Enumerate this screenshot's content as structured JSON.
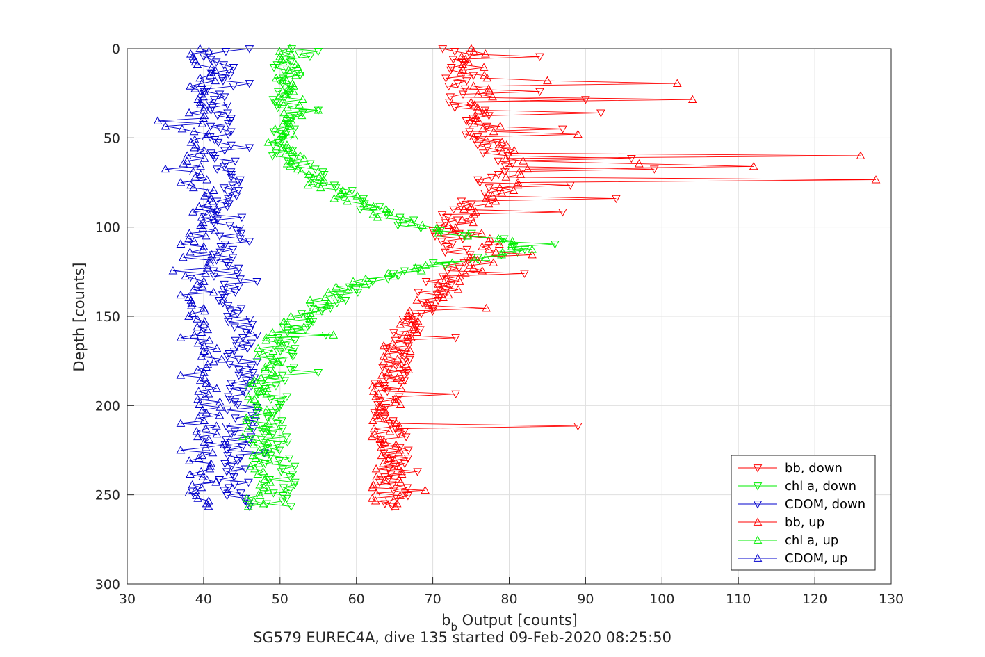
{
  "chart_data": {
    "type": "line",
    "xlabel_main": "b",
    "xlabel_sub": "b",
    "xlabel_rest": " Output [counts]",
    "ylabel": "Depth [counts]",
    "caption": "SG579 EUREC4A, dive 135 started 09-Feb-2020 08:25:50",
    "xlim": [
      30,
      130
    ],
    "ylim": [
      300,
      0
    ],
    "y_reversed": true,
    "grid": true,
    "legend_position": "bottom-right",
    "xticks": [
      "30",
      "40",
      "50",
      "60",
      "70",
      "80",
      "90",
      "100",
      "110",
      "120",
      "130"
    ],
    "yticks": [
      "0",
      "50",
      "100",
      "150",
      "200",
      "250",
      "300"
    ],
    "series": [
      {
        "name": "bb, down",
        "color": "#ff0000",
        "marker": "triangle-down",
        "profile": [
          [
            0,
            73
          ],
          [
            10,
            74
          ],
          [
            20,
            73
          ],
          [
            30,
            74
          ],
          [
            40,
            76
          ],
          [
            50,
            76
          ],
          [
            60,
            79
          ],
          [
            70,
            78
          ],
          [
            80,
            77
          ],
          [
            90,
            74
          ],
          [
            100,
            71
          ],
          [
            110,
            73
          ],
          [
            120,
            74
          ],
          [
            130,
            71
          ],
          [
            140,
            69
          ],
          [
            150,
            68
          ],
          [
            160,
            66
          ],
          [
            170,
            65
          ],
          [
            180,
            65
          ],
          [
            190,
            64
          ],
          [
            200,
            64
          ],
          [
            210,
            64
          ],
          [
            220,
            65
          ],
          [
            230,
            65
          ],
          [
            240,
            65
          ],
          [
            250,
            65
          ],
          [
            256,
            65
          ]
        ],
        "spikes": [
          [
            4,
            84
          ],
          [
            24,
            84
          ],
          [
            28,
            90
          ],
          [
            36,
            92
          ],
          [
            45,
            87
          ],
          [
            62,
            96
          ],
          [
            68,
            99
          ],
          [
            76,
            88
          ],
          [
            84,
            94
          ],
          [
            91,
            87
          ],
          [
            126,
            82
          ],
          [
            162,
            73
          ],
          [
            193,
            73
          ],
          [
            212,
            89
          ],
          [
            237,
            68
          ]
        ]
      },
      {
        "name": "chl a, down",
        "color": "#00ee00",
        "marker": "triangle-down",
        "profile": [
          [
            0,
            53
          ],
          [
            10,
            51
          ],
          [
            20,
            51
          ],
          [
            30,
            51
          ],
          [
            40,
            51
          ],
          [
            50,
            51
          ],
          [
            60,
            51
          ],
          [
            70,
            55
          ],
          [
            80,
            58
          ],
          [
            90,
            62
          ],
          [
            100,
            68
          ],
          [
            106,
            77
          ],
          [
            110,
            82
          ],
          [
            115,
            80
          ],
          [
            120,
            72
          ],
          [
            130,
            62
          ],
          [
            140,
            57
          ],
          [
            150,
            54
          ],
          [
            160,
            51
          ],
          [
            170,
            50
          ],
          [
            180,
            50
          ],
          [
            190,
            49
          ],
          [
            200,
            49
          ],
          [
            210,
            49
          ],
          [
            220,
            49
          ],
          [
            230,
            50
          ],
          [
            240,
            50
          ],
          [
            250,
            50
          ],
          [
            256,
            50
          ]
        ],
        "spikes": [
          [
            1,
            55
          ],
          [
            35,
            55
          ],
          [
            110,
            86
          ],
          [
            160,
            56
          ],
          [
            182,
            55
          ],
          [
            220,
            51
          ]
        ]
      },
      {
        "name": "CDOM, down",
        "color": "#0000cc",
        "marker": "triangle-down",
        "profile": [
          [
            0,
            42
          ],
          [
            10,
            42
          ],
          [
            20,
            42
          ],
          [
            30,
            42
          ],
          [
            40,
            42
          ],
          [
            50,
            42
          ],
          [
            60,
            42
          ],
          [
            70,
            43
          ],
          [
            80,
            43
          ],
          [
            90,
            43
          ],
          [
            100,
            43
          ],
          [
            110,
            43
          ],
          [
            120,
            43
          ],
          [
            130,
            43
          ],
          [
            140,
            44
          ],
          [
            150,
            44
          ],
          [
            160,
            45
          ],
          [
            170,
            45
          ],
          [
            180,
            45
          ],
          [
            190,
            45
          ],
          [
            200,
            45
          ],
          [
            210,
            45
          ],
          [
            220,
            44
          ],
          [
            230,
            44
          ],
          [
            240,
            44
          ],
          [
            250,
            44
          ],
          [
            256,
            44
          ]
        ],
        "spikes": [
          [
            0,
            46
          ],
          [
            20,
            46
          ],
          [
            55,
            46
          ],
          [
            94,
            45
          ],
          [
            108,
            46
          ],
          [
            131,
            47
          ],
          [
            160,
            47
          ],
          [
            176,
            47
          ],
          [
            227,
            48
          ],
          [
            256,
            46
          ]
        ]
      },
      {
        "name": "bb, up",
        "color": "#ff0000",
        "marker": "triangle-up",
        "profile": [
          [
            0,
            76
          ],
          [
            10,
            75
          ],
          [
            20,
            76
          ],
          [
            30,
            76
          ],
          [
            40,
            77
          ],
          [
            50,
            77
          ],
          [
            60,
            81
          ],
          [
            70,
            81
          ],
          [
            80,
            79
          ],
          [
            90,
            76
          ],
          [
            100,
            73
          ],
          [
            110,
            77
          ],
          [
            120,
            76
          ],
          [
            130,
            73
          ],
          [
            140,
            70
          ],
          [
            150,
            68
          ],
          [
            160,
            66
          ],
          [
            170,
            65
          ],
          [
            180,
            65
          ],
          [
            190,
            64
          ],
          [
            200,
            64
          ],
          [
            210,
            64
          ],
          [
            220,
            64
          ],
          [
            230,
            64
          ],
          [
            240,
            64
          ],
          [
            250,
            64
          ],
          [
            256,
            64
          ]
        ],
        "spikes": [
          [
            18,
            85
          ],
          [
            20,
            102
          ],
          [
            29,
            104
          ],
          [
            48,
            89
          ],
          [
            60,
            126
          ],
          [
            64,
            97
          ],
          [
            66,
            112
          ],
          [
            73,
            128
          ],
          [
            115,
            83
          ],
          [
            146,
            77
          ],
          [
            186,
            66
          ],
          [
            247,
            69
          ]
        ]
      },
      {
        "name": "chl a, up",
        "color": "#00ee00",
        "marker": "triangle-up",
        "profile": [
          [
            0,
            52
          ],
          [
            10,
            51
          ],
          [
            20,
            51
          ],
          [
            30,
            51
          ],
          [
            40,
            51
          ],
          [
            50,
            50
          ],
          [
            60,
            51
          ],
          [
            70,
            53
          ],
          [
            80,
            57
          ],
          [
            90,
            62
          ],
          [
            100,
            68
          ],
          [
            106,
            76
          ],
          [
            110,
            81
          ],
          [
            116,
            78
          ],
          [
            122,
            70
          ],
          [
            130,
            61
          ],
          [
            140,
            56
          ],
          [
            150,
            53
          ],
          [
            160,
            50
          ],
          [
            170,
            48
          ],
          [
            180,
            48
          ],
          [
            190,
            47
          ],
          [
            200,
            47
          ],
          [
            210,
            47
          ],
          [
            220,
            47
          ],
          [
            230,
            47
          ],
          [
            240,
            47
          ],
          [
            250,
            47
          ],
          [
            256,
            47
          ]
        ],
        "spikes": [
          [
            34,
            55
          ],
          [
            113,
            83
          ],
          [
            115,
            79
          ],
          [
            160,
            57
          ]
        ]
      },
      {
        "name": "CDOM, up",
        "color": "#0000cc",
        "marker": "triangle-up",
        "profile": [
          [
            0,
            40
          ],
          [
            10,
            40
          ],
          [
            20,
            40
          ],
          [
            30,
            40
          ],
          [
            40,
            39
          ],
          [
            50,
            39
          ],
          [
            60,
            39
          ],
          [
            70,
            39
          ],
          [
            80,
            40
          ],
          [
            90,
            40
          ],
          [
            100,
            40
          ],
          [
            110,
            40
          ],
          [
            120,
            39
          ],
          [
            130,
            39
          ],
          [
            140,
            40
          ],
          [
            150,
            40
          ],
          [
            160,
            40
          ],
          [
            170,
            40
          ],
          [
            180,
            41
          ],
          [
            190,
            41
          ],
          [
            200,
            41
          ],
          [
            210,
            41
          ],
          [
            220,
            41
          ],
          [
            230,
            40
          ],
          [
            240,
            40
          ],
          [
            250,
            40
          ],
          [
            256,
            40
          ]
        ],
        "spikes": [
          [
            41,
            34
          ],
          [
            44,
            35
          ],
          [
            68,
            35
          ],
          [
            75,
            37
          ],
          [
            109,
            37
          ],
          [
            124,
            36
          ],
          [
            138,
            37
          ],
          [
            162,
            37
          ],
          [
            183,
            37
          ],
          [
            210,
            37
          ],
          [
            225,
            37
          ]
        ]
      }
    ]
  }
}
